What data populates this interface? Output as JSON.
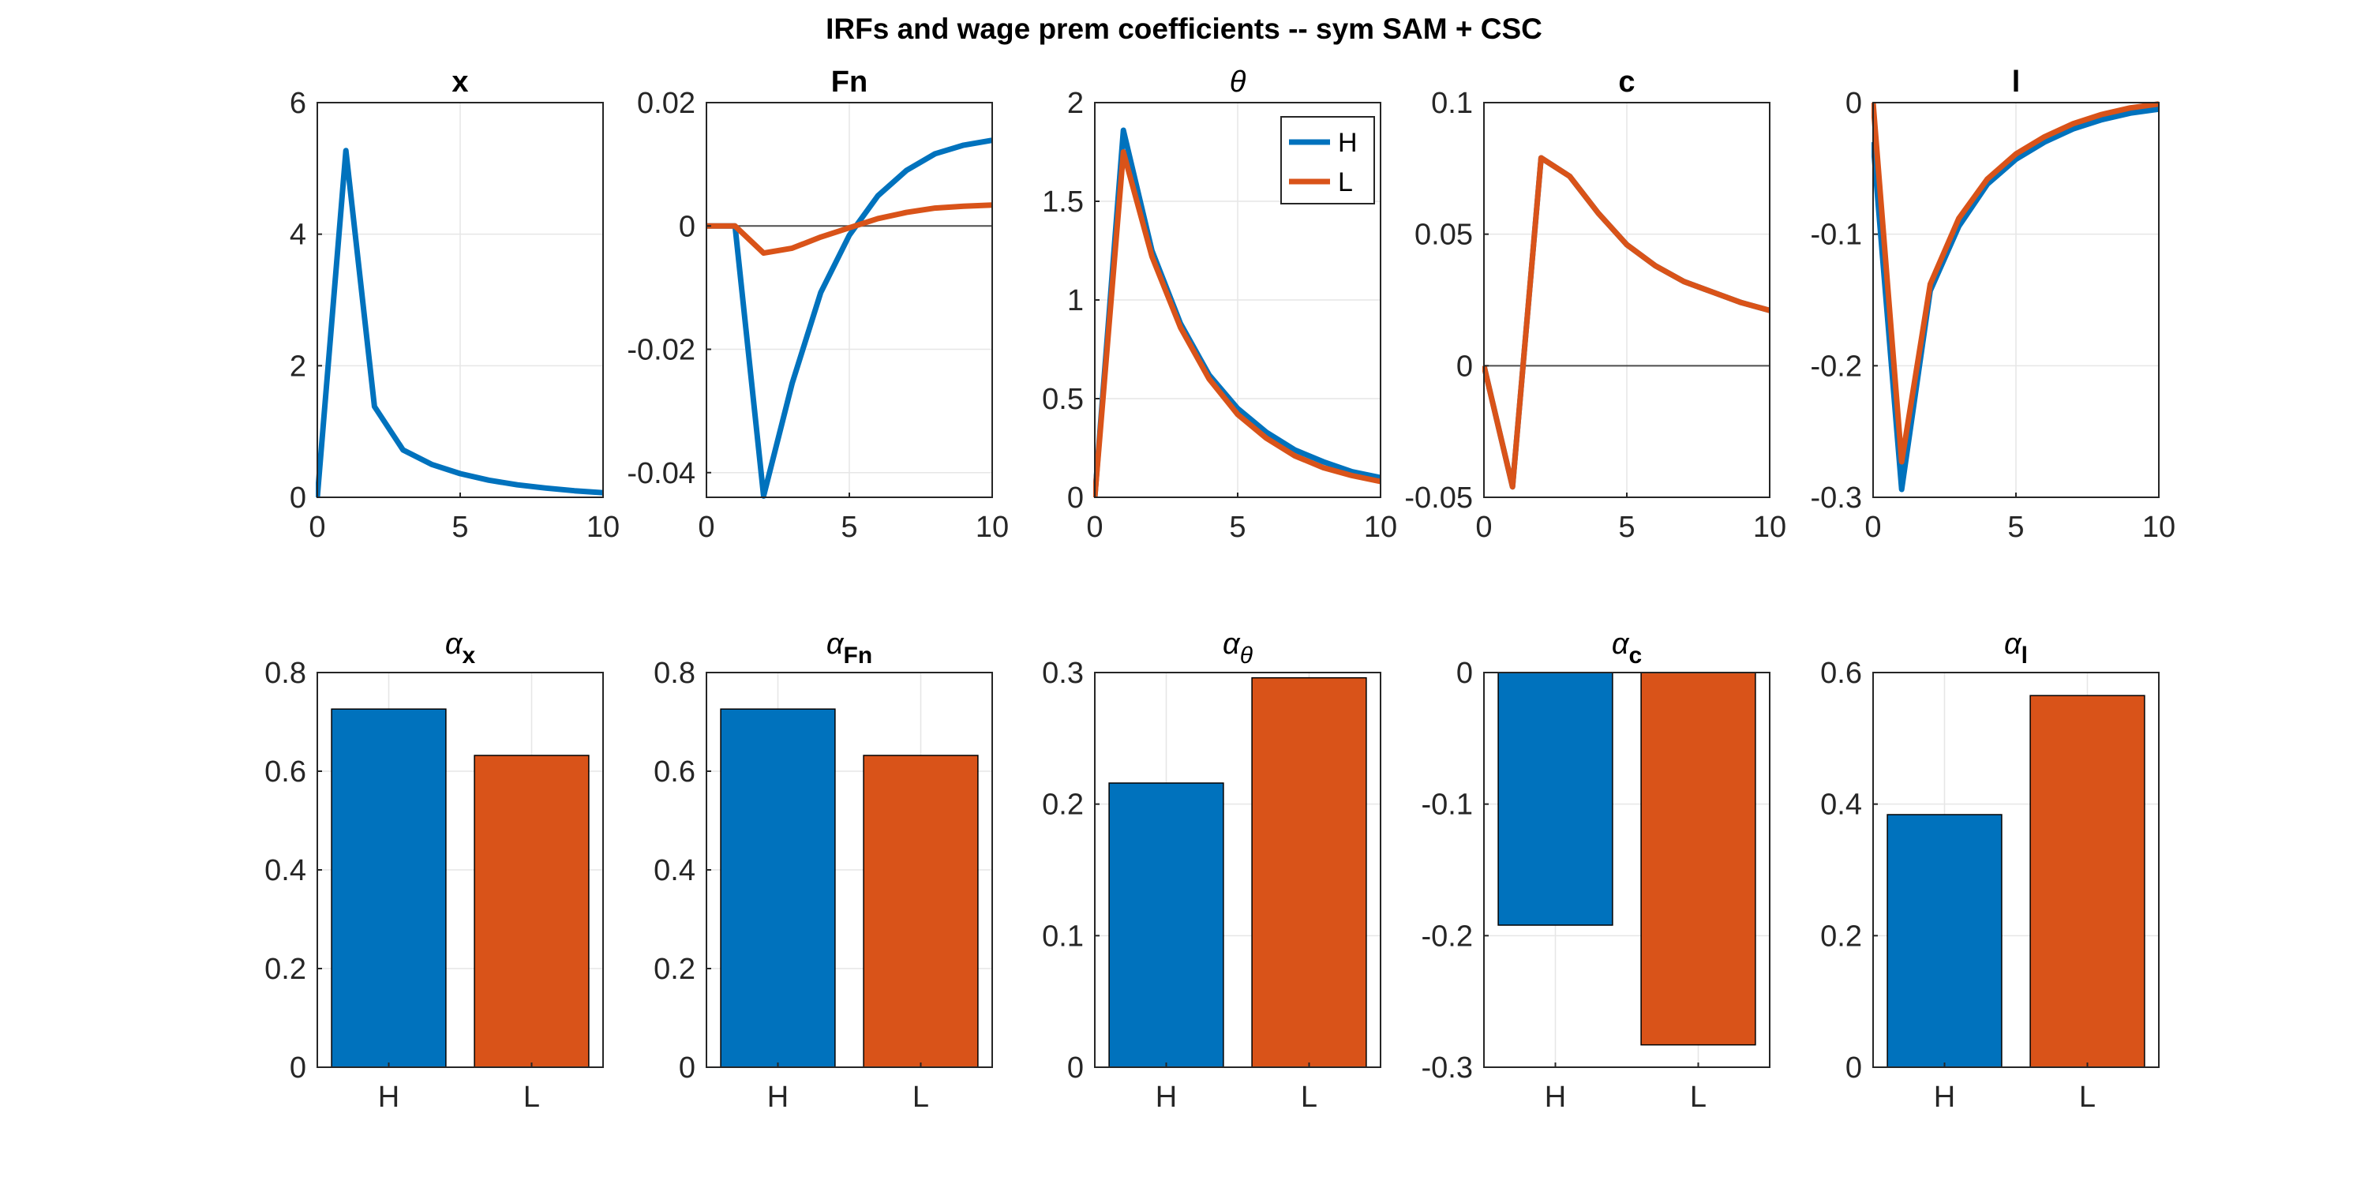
{
  "figure": {
    "title": "IRFs and wage prem coefficients -- sym SAM + CSC"
  },
  "colors": {
    "H": "#0072BD",
    "L": "#D95319",
    "grid": "#e6e6e6",
    "axis": "#262626",
    "zero": "#4d4d4d"
  },
  "legend": {
    "entries": [
      "H",
      "L"
    ],
    "location": "top-right of theta panel"
  },
  "chart_data": [
    {
      "type": "line",
      "title": "x",
      "title_style": "bold",
      "x": [
        0,
        1,
        2,
        3,
        4,
        5,
        6,
        7,
        8,
        9,
        10
      ],
      "series": [
        {
          "name": "H",
          "values": [
            0,
            5.27,
            1.38,
            0.72,
            0.5,
            0.36,
            0.26,
            0.19,
            0.14,
            0.1,
            0.07
          ]
        }
      ],
      "xlim": [
        0,
        10
      ],
      "ylim": [
        0,
        6
      ],
      "xticks": [
        0,
        5,
        10
      ],
      "xtick_labels": [
        "0",
        "5",
        "10"
      ],
      "yticks": [
        0,
        2,
        4,
        6
      ],
      "ytick_labels": [
        "0",
        "2",
        "4",
        "6"
      ],
      "zero_line": false
    },
    {
      "type": "line",
      "title": "Fn",
      "title_style": "bold",
      "x": [
        0,
        1,
        2,
        3,
        4,
        5,
        6,
        7,
        8,
        9,
        10
      ],
      "series": [
        {
          "name": "H",
          "values": [
            0,
            0,
            -0.0438,
            -0.0255,
            -0.0108,
            -0.0015,
            0.0049,
            0.009,
            0.0117,
            0.0131,
            0.0139
          ]
        },
        {
          "name": "L",
          "values": [
            0,
            0,
            -0.0044,
            -0.0036,
            -0.0018,
            -0.0003,
            0.0012,
            0.0022,
            0.0029,
            0.0032,
            0.0034
          ]
        }
      ],
      "xlim": [
        0,
        10
      ],
      "ylim": [
        -0.044,
        0.02
      ],
      "xticks": [
        0,
        5,
        10
      ],
      "xtick_labels": [
        "0",
        "5",
        "10"
      ],
      "yticks": [
        -0.04,
        -0.02,
        0,
        0.02
      ],
      "ytick_labels": [
        "-0.04",
        "-0.02",
        "0",
        "0.02"
      ],
      "zero_line": true
    },
    {
      "type": "line",
      "title": "θ",
      "title_style": "italic",
      "x": [
        0,
        1,
        2,
        3,
        4,
        5,
        6,
        7,
        8,
        9,
        10
      ],
      "series": [
        {
          "name": "H",
          "values": [
            0,
            1.86,
            1.25,
            0.88,
            0.62,
            0.45,
            0.33,
            0.24,
            0.18,
            0.13,
            0.1
          ]
        },
        {
          "name": "L",
          "values": [
            0,
            1.75,
            1.22,
            0.86,
            0.6,
            0.42,
            0.3,
            0.21,
            0.15,
            0.11,
            0.08
          ]
        }
      ],
      "xlim": [
        0,
        10
      ],
      "ylim": [
        0,
        2
      ],
      "xticks": [
        0,
        5,
        10
      ],
      "xtick_labels": [
        "0",
        "5",
        "10"
      ],
      "yticks": [
        0,
        0.5,
        1,
        1.5,
        2
      ],
      "ytick_labels": [
        "0",
        "0.5",
        "1",
        "1.5",
        "2"
      ],
      "zero_line": false,
      "legend": true
    },
    {
      "type": "line",
      "title": "c",
      "title_style": "bold",
      "x": [
        0,
        1,
        2,
        3,
        4,
        5,
        6,
        7,
        8,
        9,
        10
      ],
      "series": [
        {
          "name": "H",
          "values": [
            0,
            -0.046,
            0.079,
            0.072,
            0.058,
            0.046,
            0.038,
            0.032,
            0.028,
            0.024,
            0.021
          ]
        },
        {
          "name": "L",
          "values": [
            0,
            -0.046,
            0.079,
            0.072,
            0.058,
            0.046,
            0.038,
            0.032,
            0.028,
            0.024,
            0.021
          ]
        }
      ],
      "xlim": [
        0,
        10
      ],
      "ylim": [
        -0.05,
        0.1
      ],
      "xticks": [
        0,
        5,
        10
      ],
      "xtick_labels": [
        "0",
        "5",
        "10"
      ],
      "yticks": [
        -0.05,
        0,
        0.05,
        0.1
      ],
      "ytick_labels": [
        "-0.05",
        "0",
        "0.05",
        "0.1"
      ],
      "zero_line": true
    },
    {
      "type": "line",
      "title": "l",
      "title_style": "bold",
      "x": [
        0,
        1,
        2,
        3,
        4,
        5,
        6,
        7,
        8,
        9,
        10
      ],
      "series": [
        {
          "name": "H",
          "values": [
            -0.03,
            -0.294,
            -0.143,
            -0.094,
            -0.062,
            -0.043,
            -0.03,
            -0.02,
            -0.013,
            -0.008,
            -0.005
          ]
        },
        {
          "name": "L",
          "values": [
            0,
            -0.273,
            -0.138,
            -0.088,
            -0.058,
            -0.039,
            -0.026,
            -0.016,
            -0.009,
            -0.004,
            -0.001
          ]
        }
      ],
      "xlim": [
        0,
        10
      ],
      "ylim": [
        -0.3,
        0
      ],
      "xticks": [
        0,
        5,
        10
      ],
      "xtick_labels": [
        "0",
        "5",
        "10"
      ],
      "yticks": [
        -0.3,
        -0.2,
        -0.1,
        0
      ],
      "ytick_labels": [
        "-0.3",
        "-0.2",
        "-0.1",
        "0"
      ],
      "zero_line": true
    },
    {
      "type": "bar",
      "title": "α",
      "title_sub": "x",
      "title_style": "alpha",
      "categories": [
        "H",
        "L"
      ],
      "values": [
        0.726,
        0.632
      ],
      "ylim": [
        0,
        0.8
      ],
      "yticks": [
        0,
        0.2,
        0.4,
        0.6,
        0.8
      ],
      "ytick_labels": [
        "0",
        "0.2",
        "0.4",
        "0.6",
        "0.8"
      ]
    },
    {
      "type": "bar",
      "title": "α",
      "title_sub": "Fn",
      "title_style": "alpha",
      "categories": [
        "H",
        "L"
      ],
      "values": [
        0.726,
        0.632
      ],
      "ylim": [
        0,
        0.8
      ],
      "yticks": [
        0,
        0.2,
        0.4,
        0.6,
        0.8
      ],
      "ytick_labels": [
        "0",
        "0.2",
        "0.4",
        "0.6",
        "0.8"
      ]
    },
    {
      "type": "bar",
      "title": "α",
      "title_sub": "θ",
      "title_style": "alpha",
      "categories": [
        "H",
        "L"
      ],
      "values": [
        0.216,
        0.296
      ],
      "ylim": [
        0,
        0.3
      ],
      "yticks": [
        0,
        0.1,
        0.2,
        0.3
      ],
      "ytick_labels": [
        "0",
        "0.1",
        "0.2",
        "0.3"
      ]
    },
    {
      "type": "bar",
      "title": "α",
      "title_sub": "c",
      "title_style": "alpha",
      "categories": [
        "H",
        "L"
      ],
      "values": [
        -0.192,
        -0.283
      ],
      "ylim": [
        -0.3,
        0
      ],
      "yticks": [
        -0.3,
        -0.2,
        -0.1,
        0
      ],
      "ytick_labels": [
        "-0.3",
        "-0.2",
        "-0.1",
        "0"
      ]
    },
    {
      "type": "bar",
      "title": "α",
      "title_sub": "l",
      "title_style": "alpha",
      "categories": [
        "H",
        "L"
      ],
      "values": [
        0.384,
        0.565
      ],
      "ylim": [
        0,
        0.6
      ],
      "yticks": [
        0,
        0.2,
        0.4,
        0.6
      ],
      "ytick_labels": [
        "0",
        "0.2",
        "0.4",
        "0.6"
      ]
    }
  ]
}
